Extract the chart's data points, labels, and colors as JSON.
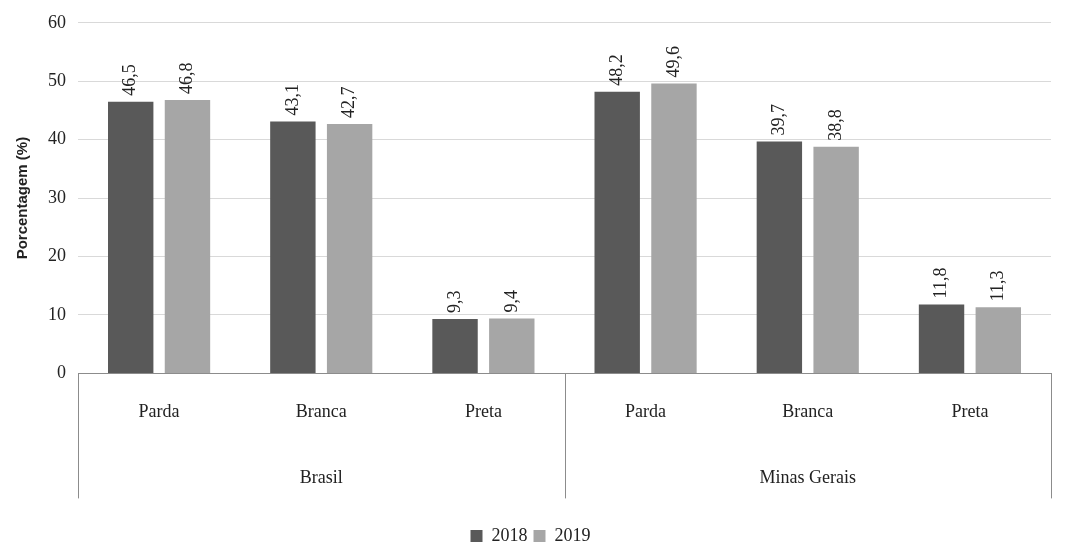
{
  "chart_data": {
    "type": "bar",
    "ylabel": "Porcentagem (%)",
    "categories": [
      "Parda",
      "Branca",
      "Preta",
      "Parda",
      "Branca",
      "Preta"
    ],
    "series": [
      {
        "name": "2018",
        "color": "#595959",
        "values": [
          46.5,
          43.1,
          9.3,
          48.2,
          39.7,
          11.8
        ],
        "value_labels": [
          "46,5",
          "43,1",
          "9,3",
          "48,2",
          "39,7",
          "11,8"
        ]
      },
      {
        "name": "2019",
        "color": "#a6a6a6",
        "values": [
          46.8,
          42.7,
          9.4,
          49.6,
          38.8,
          11.3
        ],
        "value_labels": [
          "46,8",
          "42,7",
          "9,4",
          "49,6",
          "38,8",
          "11,3"
        ]
      }
    ],
    "ylim": [
      0,
      60
    ],
    "yticks": [
      0,
      10,
      20,
      30,
      40,
      50,
      60
    ],
    "grid": "y",
    "legend": "bottom",
    "annotations": [
      "Brasil",
      "Minas Gerais"
    ]
  }
}
